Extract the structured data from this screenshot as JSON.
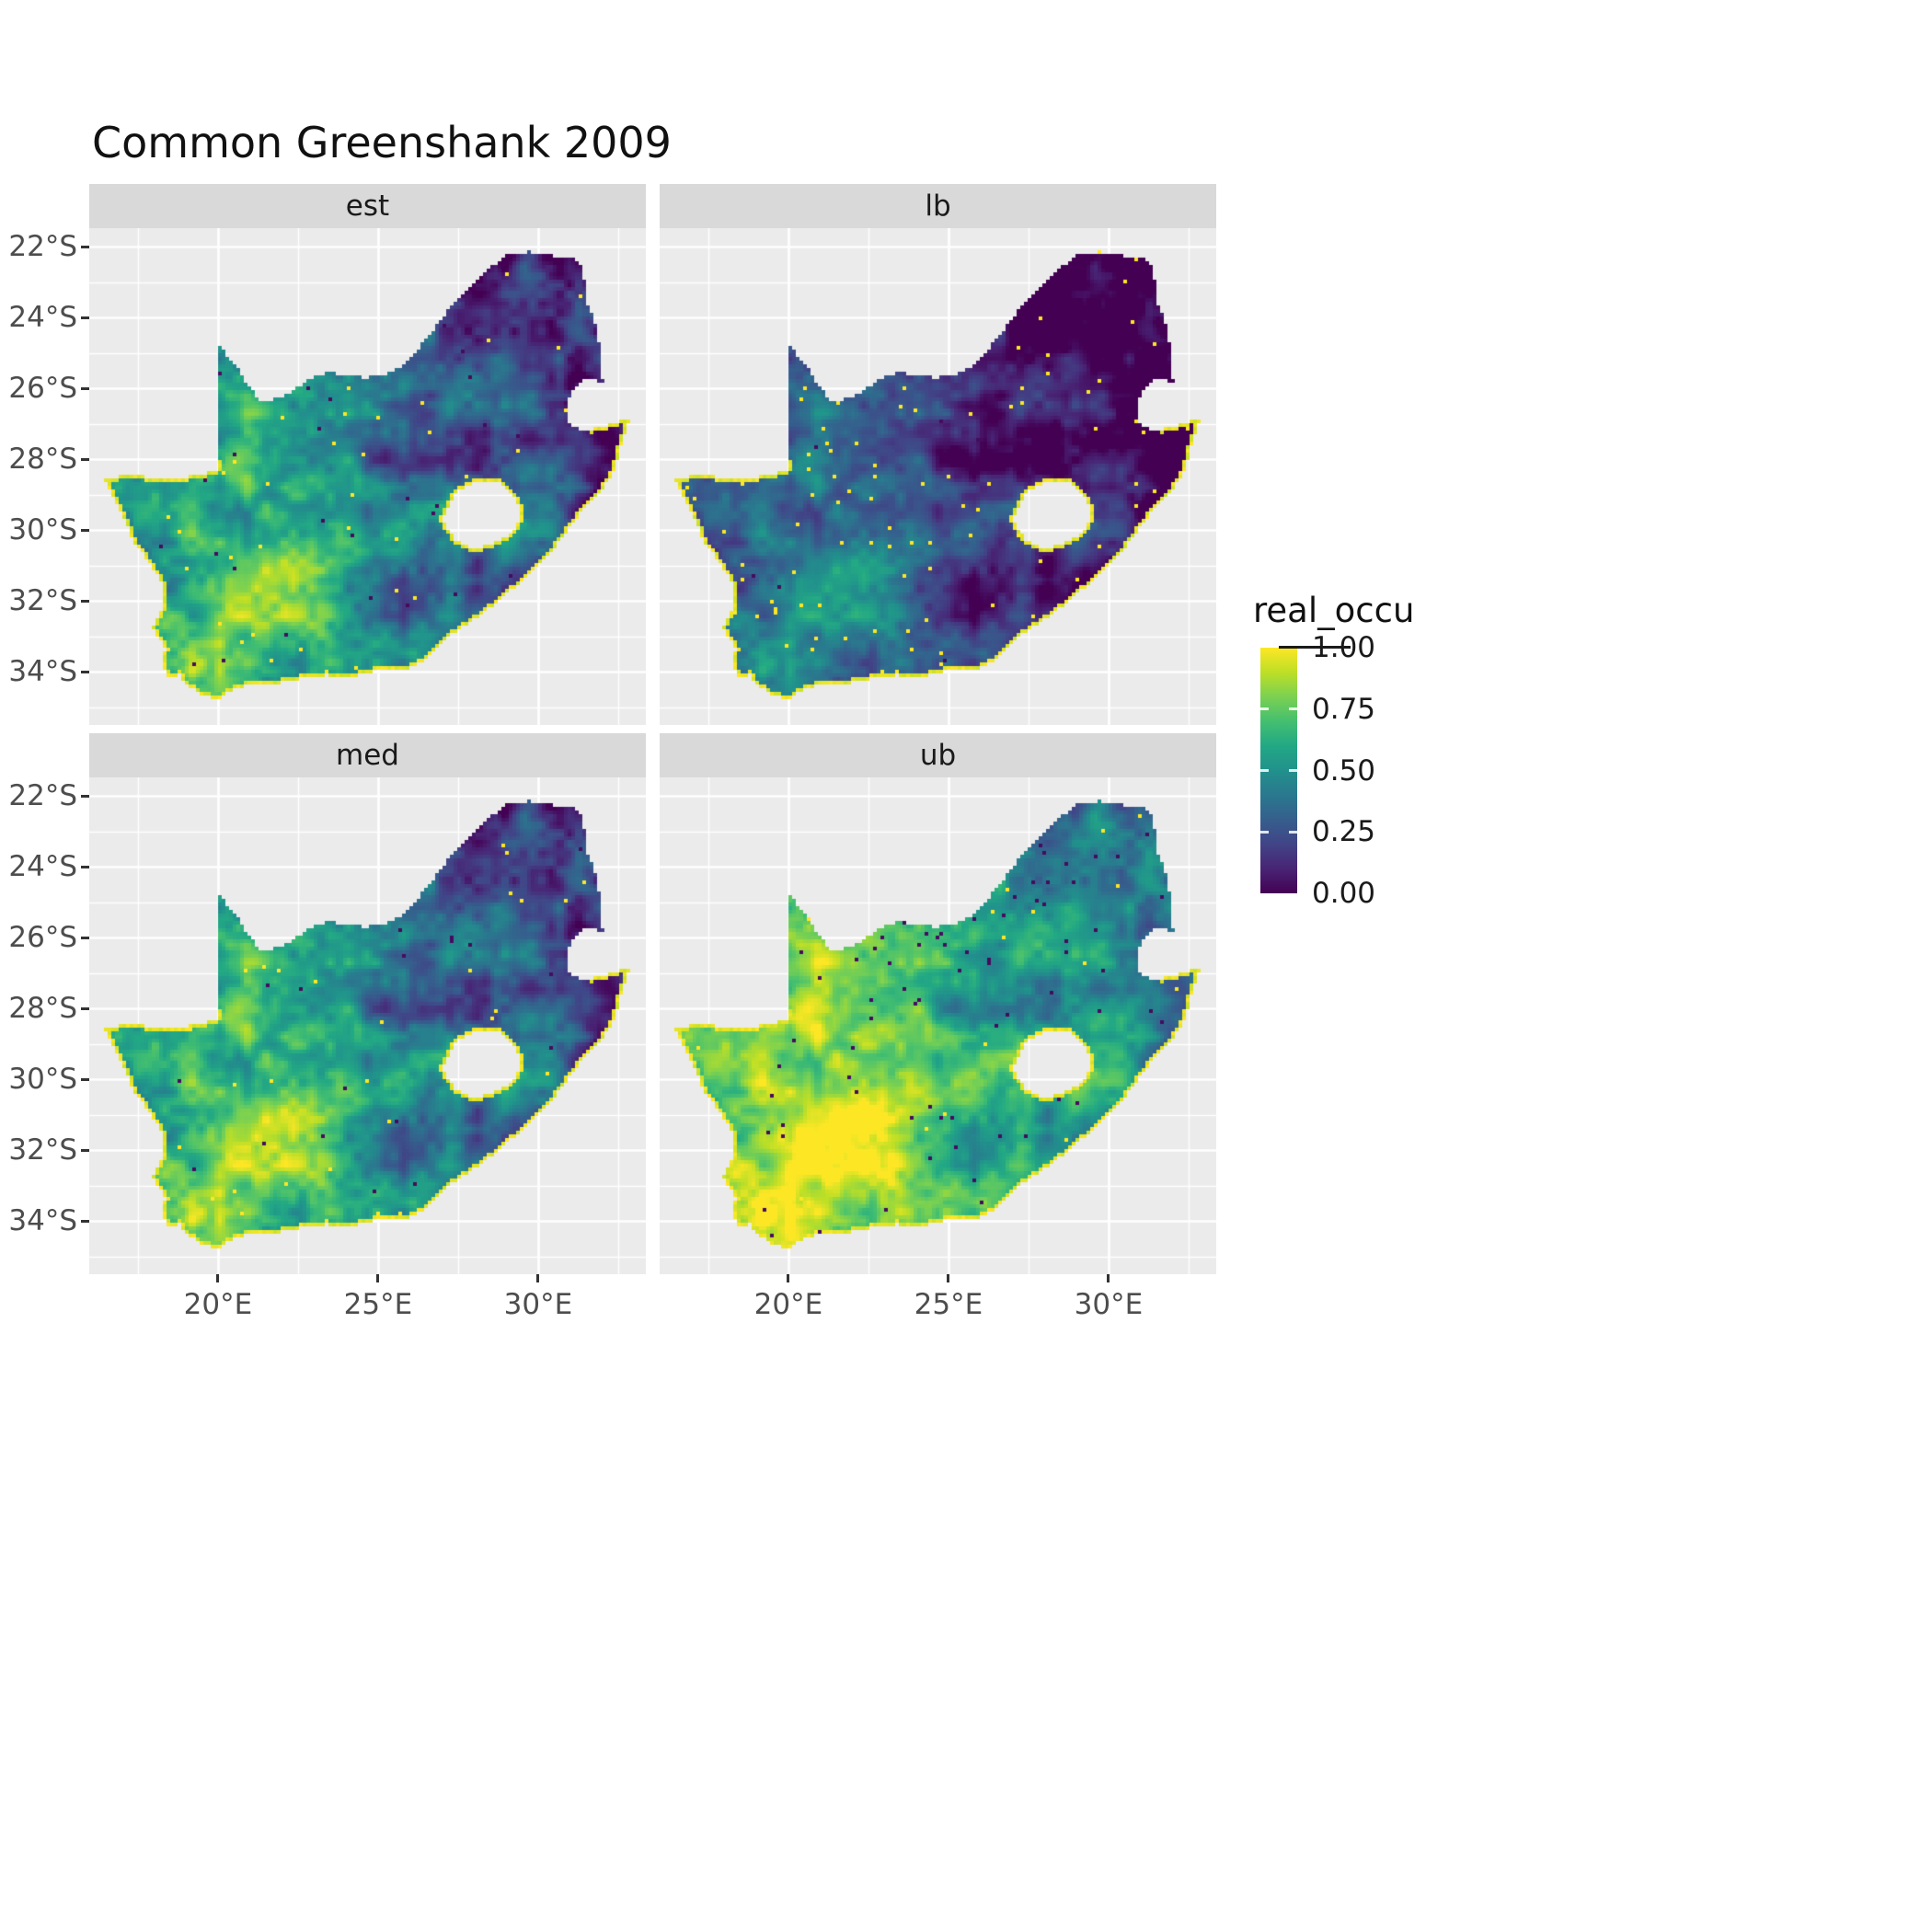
{
  "title": "Common Greenshank 2009",
  "chart_data": {
    "type": "heatmap",
    "subtype": "faceted_raster_map",
    "title": "Common Greenshank 2009",
    "region": "South Africa",
    "variable": "real_occu",
    "facets": [
      {
        "label": "est",
        "transform": {
          "mult": 1.0,
          "shift": 0.0
        },
        "bright_speckle": 0.9965,
        "dark_speckle": 0.998
      },
      {
        "label": "lb",
        "transform": {
          "mult": 0.85,
          "shift": -0.17
        },
        "bright_speckle": 0.9905,
        "dark_speckle": 0.999
      },
      {
        "label": "med",
        "transform": {
          "mult": 1.0,
          "shift": 0.05
        },
        "bright_speckle": 0.9965,
        "dark_speckle": 0.998
      },
      {
        "label": "ub",
        "transform": {
          "mult": 0.9,
          "shift": 0.28
        },
        "bright_speckle": 0.998,
        "dark_speckle": 0.9915
      }
    ],
    "x_axis": {
      "ticks": [
        {
          "label": "20°E",
          "lon": 20
        },
        {
          "label": "25°E",
          "lon": 25
        },
        {
          "label": "30°E",
          "lon": 30
        }
      ],
      "minor_lons": [
        17.5,
        22.5,
        27.5,
        32.5
      ]
    },
    "y_axis": {
      "ticks": [
        {
          "label": "22°S",
          "lat": 22
        },
        {
          "label": "24°S",
          "lat": 24
        },
        {
          "label": "26°S",
          "lat": 26
        },
        {
          "label": "28°S",
          "lat": 28
        },
        {
          "label": "30°S",
          "lat": 30
        },
        {
          "label": "32°S",
          "lat": 32
        },
        {
          "label": "34°S",
          "lat": 34
        }
      ],
      "minor_lats": [
        23,
        25,
        27,
        29,
        31,
        33,
        35
      ]
    },
    "legend": {
      "title": "real_occu",
      "ticks": [
        {
          "label": "1.00",
          "value": 1.0
        },
        {
          "label": "0.75",
          "value": 0.75
        },
        {
          "label": "0.50",
          "value": 0.5
        },
        {
          "label": "0.25",
          "value": 0.25
        },
        {
          "label": "0.00",
          "value": 0.0
        }
      ]
    },
    "palette": {
      "name": "viridis",
      "stops": [
        "#440154",
        "#482475",
        "#414487",
        "#355f8d",
        "#2a788e",
        "#21918c",
        "#22a884",
        "#44bf70",
        "#7ad151",
        "#bddf26",
        "#fde725"
      ]
    },
    "style": {
      "panel_bg": "#EBEBEB",
      "strip_bg": "#D9D9D9",
      "grid_color": "#FFFFFF",
      "axis_text": "#4D4D4D",
      "tick_mark": "#333333",
      "title_color": "#111111"
    },
    "outline_lonlat": [
      [
        16.45,
        28.6
      ],
      [
        17.2,
        28.4
      ],
      [
        18.1,
        28.55
      ],
      [
        19.0,
        28.5
      ],
      [
        19.6,
        28.4
      ],
      [
        19.99,
        28.32
      ],
      [
        19.99,
        24.75
      ],
      [
        20.55,
        25.35
      ],
      [
        20.95,
        25.95
      ],
      [
        21.35,
        26.35
      ],
      [
        21.9,
        26.3
      ],
      [
        22.45,
        26.0
      ],
      [
        22.9,
        25.7
      ],
      [
        23.45,
        25.55
      ],
      [
        24.0,
        25.62
      ],
      [
        24.6,
        25.7
      ],
      [
        25.2,
        25.62
      ],
      [
        25.7,
        25.4
      ],
      [
        26.2,
        24.95
      ],
      [
        26.7,
        24.4
      ],
      [
        27.2,
        23.8
      ],
      [
        27.85,
        23.15
      ],
      [
        28.5,
        22.6
      ],
      [
        29.1,
        22.2
      ],
      [
        29.7,
        22.15
      ],
      [
        30.3,
        22.25
      ],
      [
        30.9,
        22.3
      ],
      [
        31.3,
        22.4
      ],
      [
        31.45,
        22.95
      ],
      [
        31.55,
        23.6
      ],
      [
        31.85,
        24.4
      ],
      [
        31.98,
        25.15
      ],
      [
        32.02,
        25.85
      ],
      [
        31.45,
        25.7
      ],
      [
        30.95,
        26.25
      ],
      [
        30.9,
        26.9
      ],
      [
        31.35,
        27.25
      ],
      [
        31.95,
        27.1
      ],
      [
        32.85,
        26.86
      ],
      [
        32.6,
        27.6
      ],
      [
        32.4,
        28.3
      ],
      [
        32.05,
        28.8
      ],
      [
        31.55,
        29.25
      ],
      [
        31.05,
        29.85
      ],
      [
        30.4,
        30.65
      ],
      [
        29.55,
        31.4
      ],
      [
        28.7,
        32.05
      ],
      [
        27.9,
        32.6
      ],
      [
        27.1,
        33.05
      ],
      [
        26.45,
        33.7
      ],
      [
        25.65,
        34.0
      ],
      [
        25.0,
        33.95
      ],
      [
        24.2,
        34.15
      ],
      [
        23.4,
        34.1
      ],
      [
        22.6,
        34.2
      ],
      [
        21.8,
        34.35
      ],
      [
        21.0,
        34.35
      ],
      [
        20.45,
        34.5
      ],
      [
        20.0,
        34.8
      ],
      [
        19.4,
        34.6
      ],
      [
        19.0,
        34.32
      ],
      [
        18.8,
        34.1
      ],
      [
        18.45,
        34.2
      ],
      [
        18.3,
        33.9
      ],
      [
        18.35,
        33.3
      ],
      [
        17.95,
        32.75
      ],
      [
        18.3,
        32.1
      ],
      [
        18.25,
        31.5
      ],
      [
        17.85,
        30.9
      ],
      [
        17.35,
        30.3
      ],
      [
        17.05,
        29.6
      ],
      [
        16.7,
        29.0
      ]
    ],
    "lesotho_hole_lonlat": [
      [
        27.05,
        29.6
      ],
      [
        27.4,
        28.95
      ],
      [
        27.95,
        28.7
      ],
      [
        28.6,
        28.6
      ],
      [
        29.1,
        28.85
      ],
      [
        29.4,
        29.3
      ],
      [
        29.45,
        29.75
      ],
      [
        29.1,
        30.15
      ],
      [
        28.55,
        30.4
      ],
      [
        27.95,
        30.55
      ],
      [
        27.45,
        30.3
      ],
      [
        27.1,
        29.95
      ]
    ]
  }
}
